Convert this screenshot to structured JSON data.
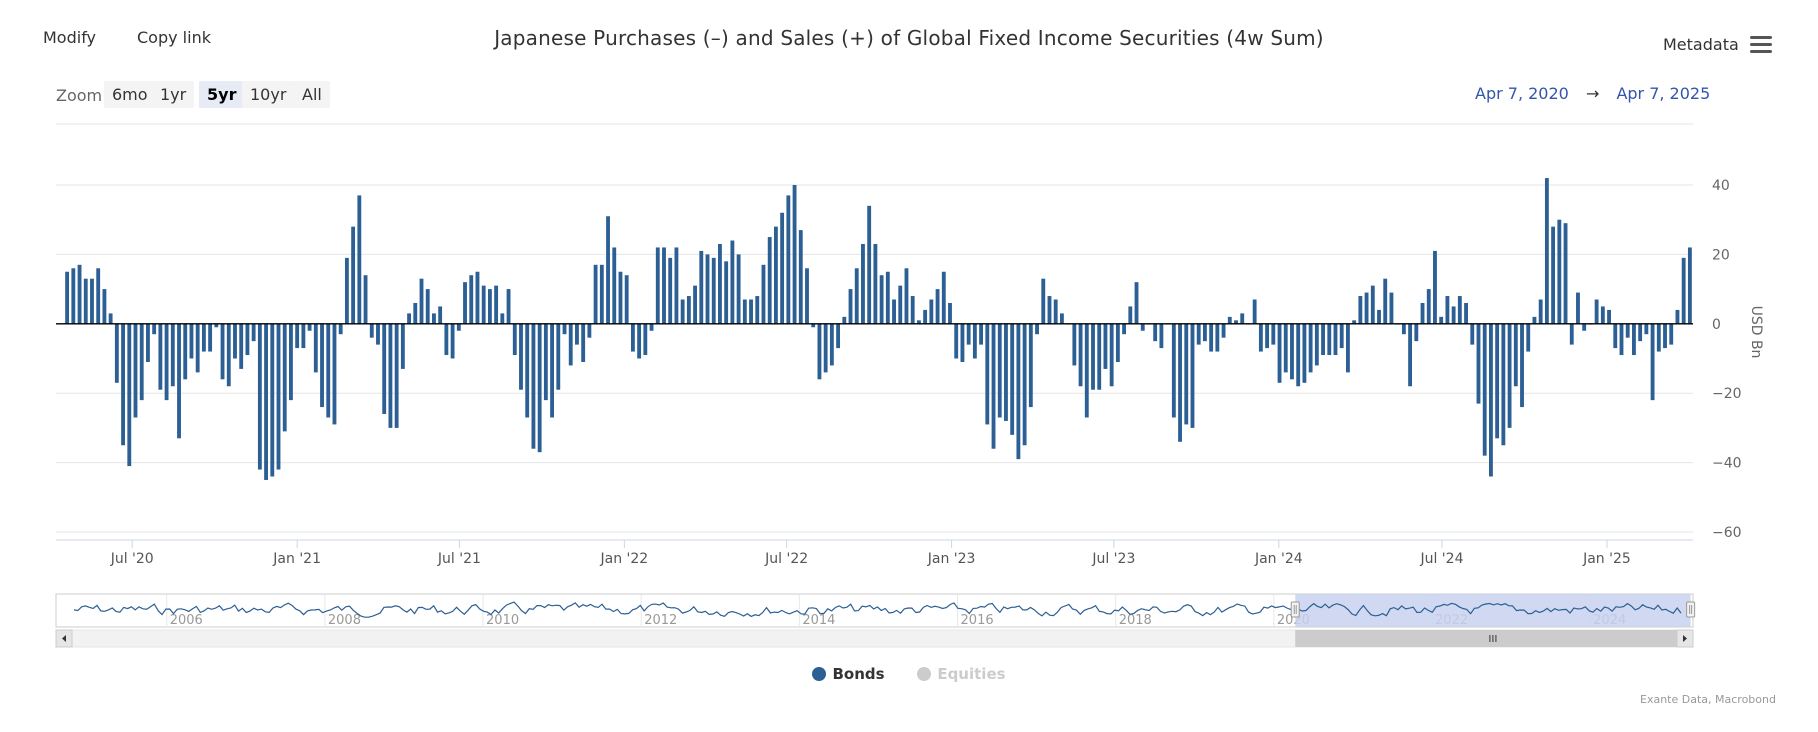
{
  "toolbar": {
    "modify_label": "Modify",
    "copy_link_label": "Copy link",
    "metadata_label": "Metadata"
  },
  "range_selector": {
    "zoom_label": "Zoom",
    "buttons": [
      "6mo",
      "1yr",
      "5yr",
      "10yr",
      "All"
    ],
    "selected": "5yr",
    "from": "Apr 7, 2020",
    "arrow": "→",
    "to": "Apr 7, 2025"
  },
  "legend": {
    "bonds": "Bonds",
    "equities": "Equities"
  },
  "credits": "Exante Data, Macrobond",
  "colors": {
    "bonds": "#2c5f94",
    "equities_hidden": "#cccccc",
    "navigator_line": "#2c5f94",
    "navigator_fill": "#c8d2ee"
  },
  "chart_data": {
    "type": "bar",
    "title": "Japanese Purchases (–) and Sales (+) of Global Fixed Income Securities (4w Sum)",
    "ylabel": "USD Bn",
    "ylim": [
      -60,
      40
    ],
    "yticks": [
      -60,
      -40,
      -20,
      0,
      20,
      40
    ],
    "x_range": [
      "2020-04-07",
      "2025-04-07"
    ],
    "x_ticks": [
      {
        "label": "Jul '20",
        "date": "2020-07-01"
      },
      {
        "label": "Jan '21",
        "date": "2021-01-01"
      },
      {
        "label": "Jul '21",
        "date": "2021-07-01"
      },
      {
        "label": "Jan '22",
        "date": "2022-01-01"
      },
      {
        "label": "Jul '22",
        "date": "2022-07-01"
      },
      {
        "label": "Jan '23",
        "date": "2023-01-01"
      },
      {
        "label": "Jul '23",
        "date": "2023-07-01"
      },
      {
        "label": "Jan '24",
        "date": "2024-01-01"
      },
      {
        "label": "Jul '24",
        "date": "2024-07-01"
      },
      {
        "label": "Jan '25",
        "date": "2025-01-01"
      }
    ],
    "series": [
      {
        "name": "Bonds",
        "values": [
          15,
          16,
          17,
          13,
          13,
          16,
          10,
          3,
          -17,
          -35,
          -41,
          -27,
          -22,
          -11,
          -3,
          -19,
          -22,
          -18,
          -33,
          -16,
          -10,
          -14,
          -8,
          -8,
          -1,
          -16,
          -18,
          -10,
          -13,
          -9,
          -5,
          -42,
          -45,
          -44,
          -42,
          -31,
          -22,
          -7,
          -7,
          -2,
          -14,
          -24,
          -27,
          -29,
          -3,
          19,
          28,
          37,
          14,
          -4,
          -6,
          -26,
          -30,
          -30,
          -13,
          3,
          6,
          13,
          10,
          3,
          5,
          -9,
          -10,
          -2,
          12,
          14,
          15,
          11,
          10,
          11,
          3,
          10,
          -9,
          -19,
          -27,
          -36,
          -37,
          -22,
          -27,
          -19,
          -3,
          -12,
          -6,
          -11,
          -4,
          17,
          17,
          31,
          22,
          15,
          14,
          -8,
          -10,
          -9,
          -2,
          22,
          22,
          19,
          22,
          7,
          8,
          11,
          21,
          20,
          19,
          23,
          18,
          24,
          20,
          7,
          7,
          8,
          17,
          25,
          28,
          32,
          37,
          40,
          27,
          16,
          -1,
          -16,
          -14,
          -12,
          -7,
          2,
          10,
          16,
          23,
          34,
          23,
          14,
          15,
          7,
          11,
          16,
          8,
          1,
          4,
          7,
          10,
          15,
          6,
          -10,
          -11,
          -6,
          -10,
          -6,
          -29,
          -36,
          -27,
          -28,
          -32,
          -39,
          -35,
          -24,
          -3,
          13,
          8,
          7,
          3,
          0,
          -12,
          -18,
          -27,
          -19,
          -19,
          -13,
          -18,
          -11,
          -3,
          5,
          12,
          -2,
          0,
          -5,
          -7,
          0,
          -27,
          -34,
          -29,
          -30,
          -6,
          -5,
          -8,
          -8,
          -4,
          2,
          1,
          3,
          0,
          7,
          -8,
          -7,
          -6,
          -17,
          -14,
          -16,
          -18,
          -17,
          -14,
          -12,
          -9,
          -9,
          -9,
          -7,
          -14,
          1,
          8,
          9,
          11,
          4,
          13,
          9,
          0,
          -3,
          -18,
          -5,
          6,
          10,
          21,
          2,
          8,
          5,
          8,
          6,
          -6,
          -23,
          -38,
          -44,
          -33,
          -35,
          -30,
          -18,
          -24,
          -8,
          2,
          7,
          42,
          28,
          30,
          29,
          -6,
          9,
          -2,
          0,
          7,
          5,
          4,
          -7,
          -9,
          -4,
          -9,
          -5,
          -3,
          -22,
          -8,
          -7,
          -6,
          4,
          19,
          22
        ]
      }
    ],
    "navigator": {
      "x_labels": [
        "2006",
        "2008",
        "2010",
        "2012",
        "2014",
        "2016",
        "2018",
        "2020",
        "2022",
        "2024"
      ],
      "selected_range": [
        "2020",
        "2025"
      ]
    }
  }
}
